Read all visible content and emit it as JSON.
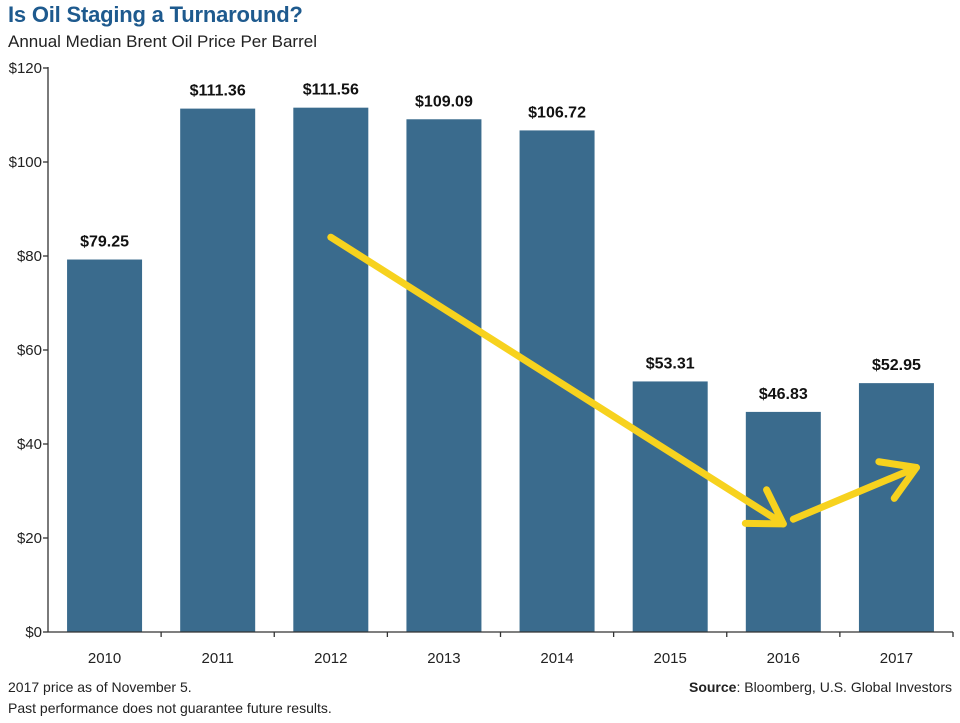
{
  "header": {
    "title": "Is Oil Staging a Turnaround?",
    "subtitle": "Annual Median Brent Oil Price Per Barrel"
  },
  "footer": {
    "note1": "2017 price as of November 5.",
    "note2": "Past performance does not guarantee future results.",
    "source_label": "Source",
    "source_text": ": Bloomberg, U.S. Global Investors"
  },
  "colors": {
    "bar": "#3a6b8d",
    "title": "#1e5a8e",
    "arrow": "#f7d21e",
    "axis": "#333333"
  },
  "chart_data": {
    "type": "bar",
    "title": "Is Oil Staging a Turnaround?",
    "subtitle": "Annual Median Brent Oil Price Per Barrel",
    "xlabel": "",
    "ylabel": "",
    "categories": [
      "2010",
      "2011",
      "2012",
      "2013",
      "2014",
      "2015",
      "2016",
      "2017"
    ],
    "values": [
      79.25,
      111.36,
      111.56,
      109.09,
      106.72,
      53.31,
      46.83,
      52.95
    ],
    "data_labels": [
      "$79.25",
      "$111.36",
      "$111.56",
      "$109.09",
      "$106.72",
      "$53.31",
      "$46.83",
      "$52.95"
    ],
    "ylim": [
      0,
      120
    ],
    "yticks": [
      0,
      20,
      40,
      60,
      80,
      100,
      120
    ],
    "ytick_labels": [
      "$0",
      "$20",
      "$40",
      "$60",
      "$80",
      "$100",
      "$120"
    ],
    "grid": false,
    "legend": null,
    "annotations": [
      {
        "type": "arrow",
        "description": "downward trend arrow",
        "from": {
          "category": "2012",
          "value": 84
        },
        "to": {
          "category": "2016",
          "value": 23
        }
      },
      {
        "type": "arrow",
        "description": "upward trend arrow",
        "from": {
          "category": "2016",
          "value": 24
        },
        "to": {
          "category": "2017",
          "value": 35
        }
      }
    ]
  }
}
